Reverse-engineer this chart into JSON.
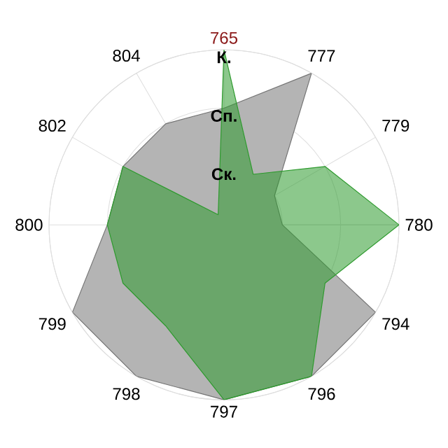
{
  "chart_data": {
    "type": "radar",
    "categories": [
      "765",
      "777",
      "779",
      "780",
      "794",
      "796",
      "797",
      "798",
      "799",
      "800",
      "802",
      "804"
    ],
    "ylim": [
      0,
      3
    ],
    "yticks": [
      {
        "value": 1,
        "label": "Ск."
      },
      {
        "value": 2,
        "label": "Сп."
      },
      {
        "value": 3,
        "label": "К."
      }
    ],
    "grid": true,
    "series": [
      {
        "color": "#b4b4b4",
        "values": [
          2,
          3,
          1,
          1,
          3,
          3,
          3,
          3,
          3,
          2,
          2,
          2
        ]
      },
      {
        "color": "#2e9a2e",
        "values": [
          3,
          1,
          2,
          3,
          2,
          3,
          3,
          2,
          2,
          2,
          2,
          0.2
        ]
      }
    ]
  }
}
